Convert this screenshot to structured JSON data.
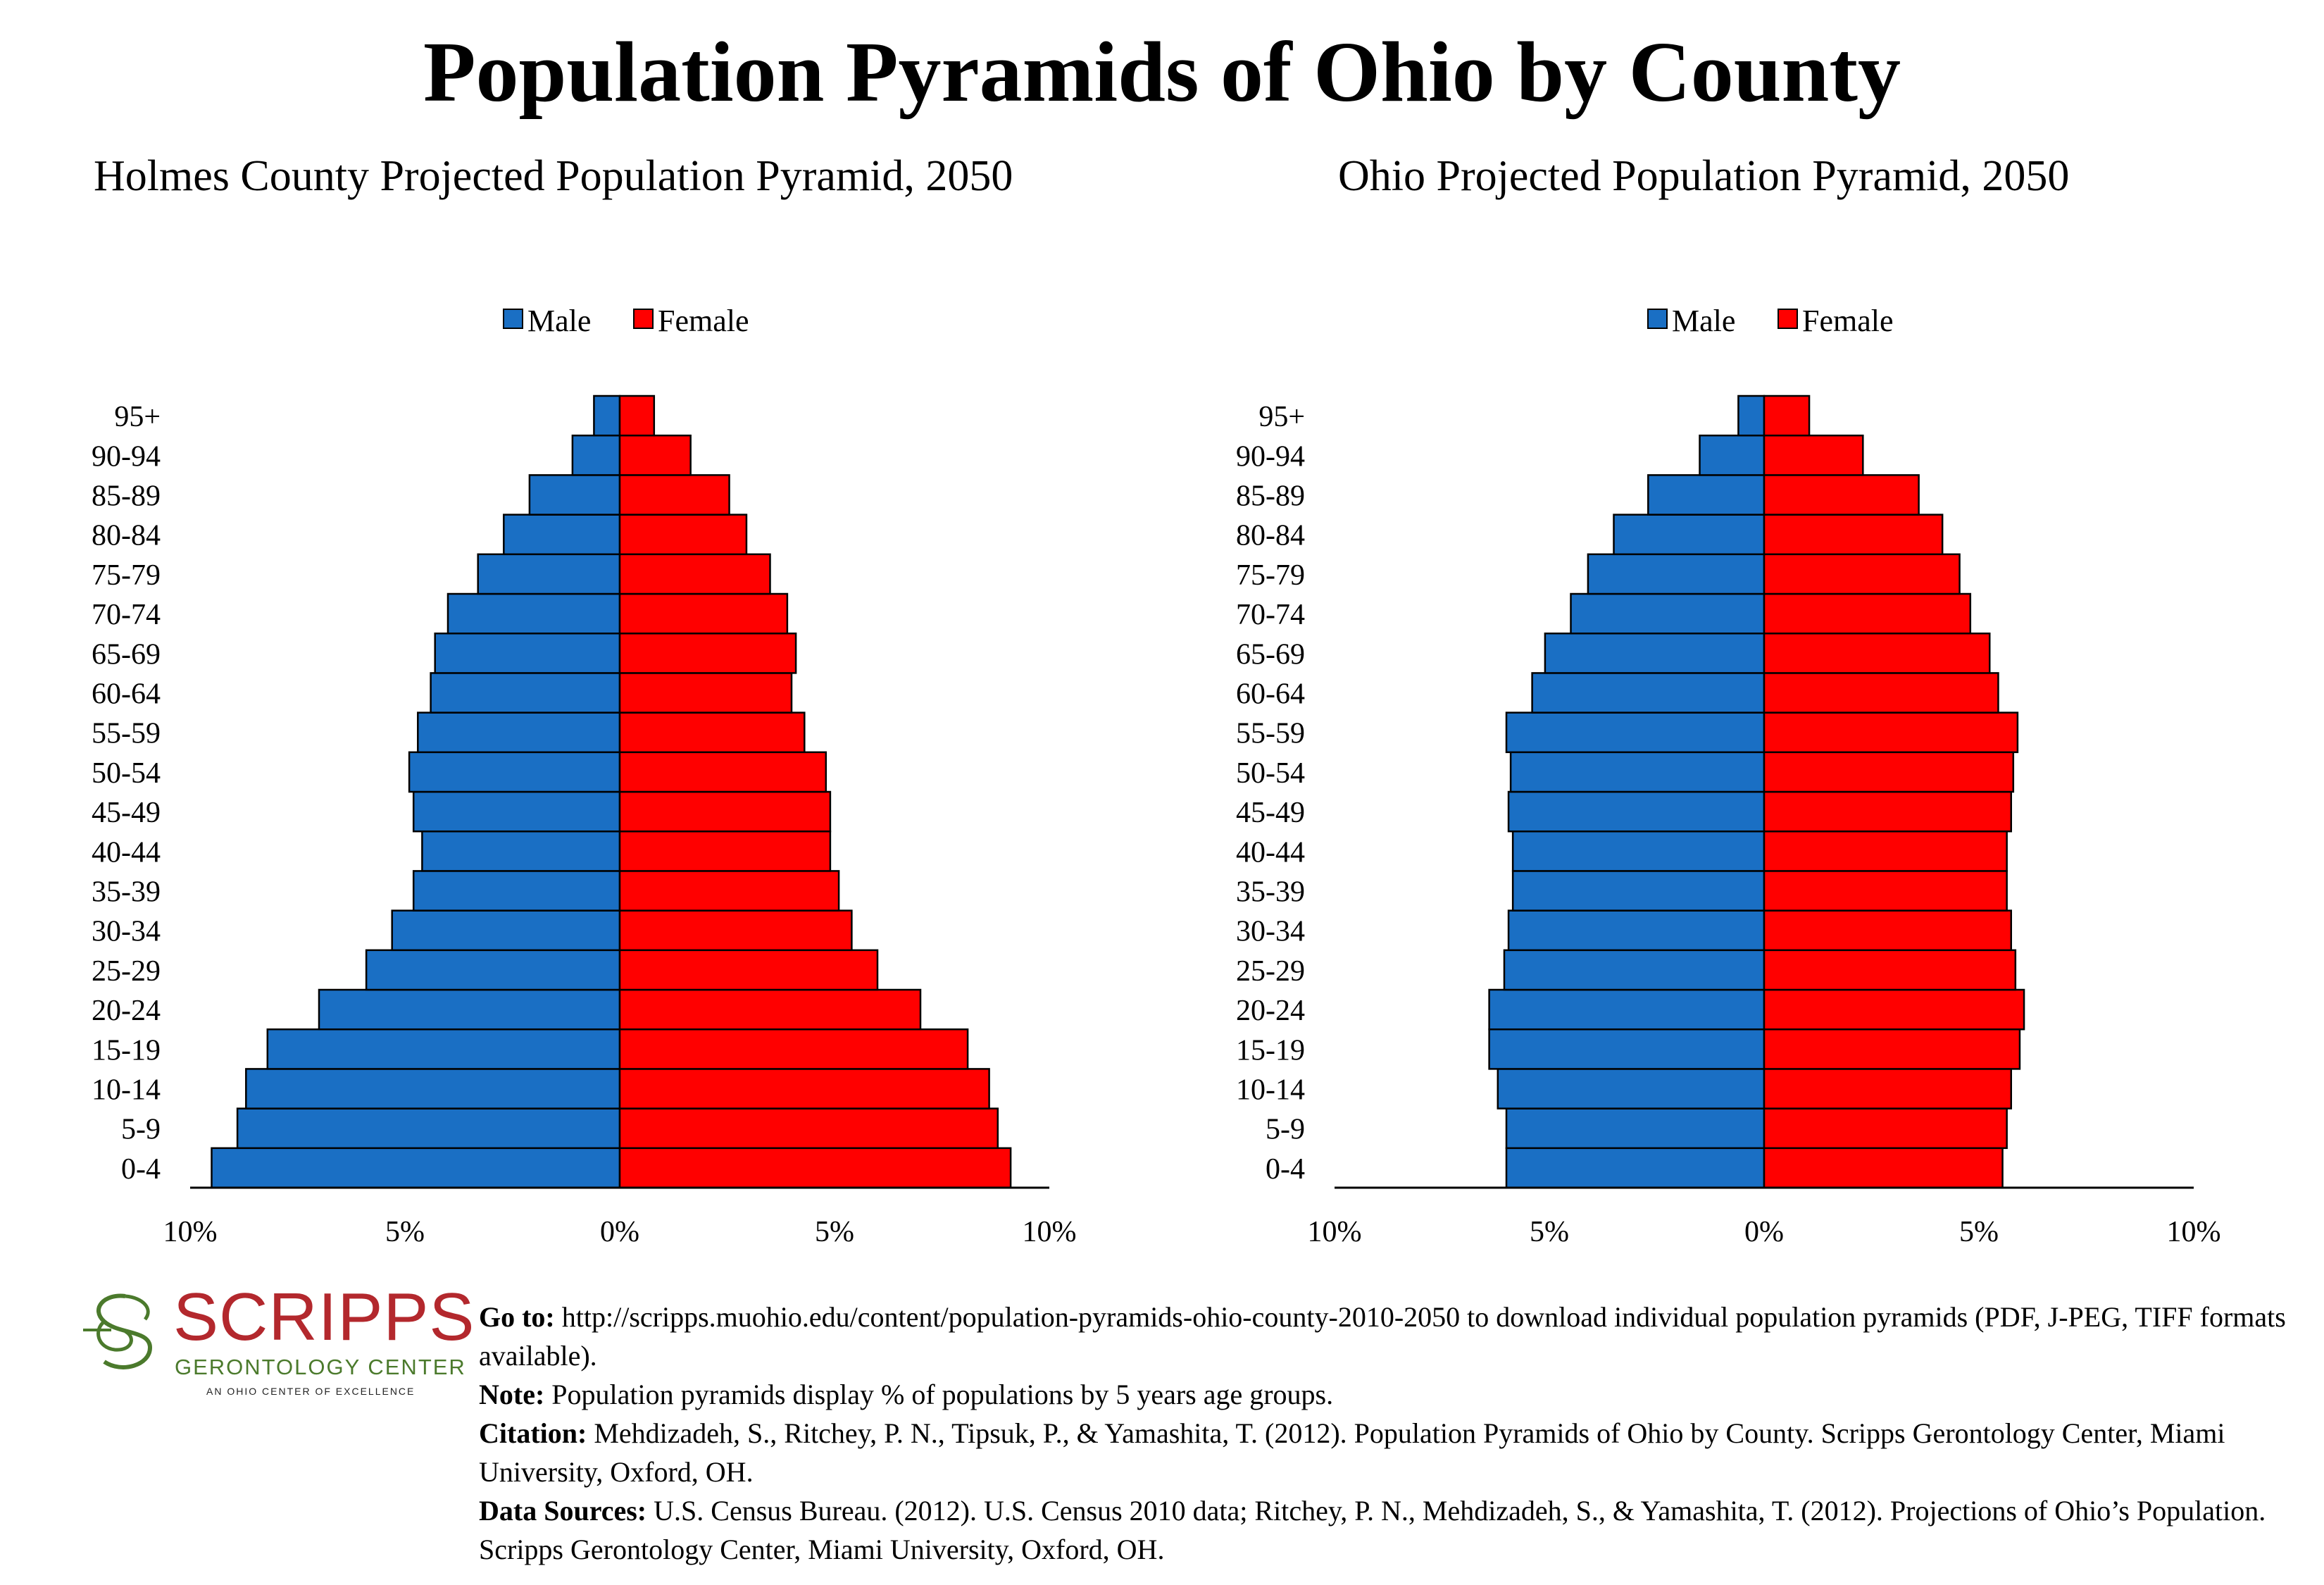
{
  "title": "Population Pyramids of Ohio by County",
  "colors": {
    "male": "#1a6fc4",
    "female": "#ff0000",
    "border": "#000000",
    "logo_red": "#b3282d",
    "logo_green": "#4b7a2c"
  },
  "chart_data": [
    {
      "type": "bar",
      "orientation": "horizontal-pyramid",
      "title": "Holmes County Projected Population Pyramid, 2050",
      "categories": [
        "0-4",
        "5-9",
        "10-14",
        "15-19",
        "20-24",
        "25-29",
        "30-34",
        "35-39",
        "40-44",
        "45-49",
        "50-54",
        "55-59",
        "60-64",
        "65-69",
        "70-74",
        "75-79",
        "80-84",
        "85-89",
        "90-94",
        "95+"
      ],
      "series": [
        {
          "name": "Male",
          "values": [
            9.5,
            8.9,
            8.7,
            8.2,
            7.0,
            5.9,
            5.3,
            4.8,
            4.6,
            4.8,
            4.9,
            4.7,
            4.4,
            4.3,
            4.0,
            3.3,
            2.7,
            2.1,
            1.1,
            0.6
          ]
        },
        {
          "name": "Female",
          "values": [
            9.1,
            8.8,
            8.6,
            8.1,
            7.0,
            6.0,
            5.4,
            5.1,
            4.9,
            4.9,
            4.8,
            4.3,
            4.0,
            4.1,
            3.9,
            3.5,
            2.95,
            2.55,
            1.65,
            0.8
          ]
        }
      ],
      "xlim": [
        -10,
        10
      ],
      "ticks": [
        "10%",
        "5%",
        "0%",
        "5%",
        "10%"
      ],
      "legend": "top-center",
      "grid": false
    },
    {
      "type": "bar",
      "orientation": "horizontal-pyramid",
      "title": "Ohio Projected Population Pyramid, 2050",
      "categories": [
        "0-4",
        "5-9",
        "10-14",
        "15-19",
        "20-24",
        "25-29",
        "30-34",
        "35-39",
        "40-44",
        "45-49",
        "50-54",
        "55-59",
        "60-64",
        "65-69",
        "70-74",
        "75-79",
        "80-84",
        "85-89",
        "90-94",
        "95+"
      ],
      "series": [
        {
          "name": "Male",
          "values": [
            6.0,
            6.0,
            6.2,
            6.4,
            6.4,
            6.05,
            5.95,
            5.85,
            5.85,
            5.95,
            5.9,
            6.0,
            5.4,
            5.1,
            4.5,
            4.1,
            3.5,
            2.7,
            1.5,
            0.6
          ]
        },
        {
          "name": "Female",
          "values": [
            5.55,
            5.65,
            5.75,
            5.95,
            6.05,
            5.85,
            5.75,
            5.65,
            5.65,
            5.75,
            5.8,
            5.9,
            5.45,
            5.25,
            4.8,
            4.55,
            4.15,
            3.6,
            2.3,
            1.05
          ]
        }
      ],
      "xlim": [
        -10,
        10
      ],
      "ticks": [
        "10%",
        "5%",
        "0%",
        "5%",
        "10%"
      ],
      "legend": "top-center",
      "grid": false
    }
  ],
  "logo": {
    "word": "SCRIPPS",
    "sub": "GERONTOLOGY CENTER",
    "tag": "AN OHIO CENTER OF EXCELLENCE"
  },
  "notes": {
    "goto_label": "Go to:",
    "goto_text": " http://scripps.muohio.edu/content/population-pyramids-ohio-county-2010-2050 to download individual population pyramids (PDF, J-PEG, TIFF formats available).",
    "note_label": "Note:",
    "note_text": " Population pyramids display % of populations by 5 years age groups.",
    "citation_label": "Citation:",
    "citation_text": " Mehdizadeh, S., Ritchey, P. N., Tipsuk, P., & Yamashita, T. (2012). Population Pyramids of Ohio by County. Scripps Gerontology Center, Miami University, Oxford, OH.",
    "sources_label": "Data Sources:",
    "sources_text": " U.S. Census Bureau. (2012). U.S. Census 2010 data; Ritchey, P. N., Mehdizadeh, S., & Yamashita, T. (2012). Projections of Ohio’s Population. Scripps Gerontology Center, Miami University, Oxford, OH."
  }
}
